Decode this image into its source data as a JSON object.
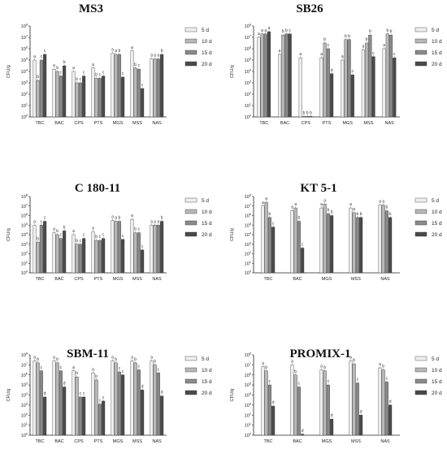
{
  "figure_title": "",
  "chart_data": [
    {
      "type": "bar",
      "title": "MS3",
      "ylabel": "CFU/g",
      "y_scale": "log10",
      "ylim_exponent": [
        0,
        8
      ],
      "tick_base": "10",
      "categories": [
        "TBC",
        "BAC",
        "CPS",
        "PTS",
        "MGS",
        "MSS",
        "NAS"
      ],
      "series": [
        {
          "name": "5 d",
          "values": [
            5.0,
            4.2,
            4.0,
            4.3,
            5.6,
            5.8,
            5.1
          ],
          "letters": [
            "a",
            "a",
            "a",
            "a",
            "a",
            "a",
            "a"
          ]
        },
        {
          "name": "10 d",
          "values": [
            3.2,
            4.0,
            3.0,
            3.4,
            5.5,
            4.3,
            5.1
          ],
          "letters": [
            "b",
            "b",
            "b",
            "b",
            "a",
            "b",
            "a"
          ]
        },
        {
          "name": "15 d",
          "values": [
            5.0,
            3.6,
            3.0,
            3.4,
            5.5,
            4.2,
            5.1
          ],
          "letters": [
            "c",
            "c",
            "c",
            "c",
            "b",
            "c",
            "a"
          ]
        },
        {
          "name": "20 d",
          "values": [
            5.5,
            4.5,
            3.6,
            3.6,
            3.5,
            2.5,
            5.5
          ],
          "letters": [
            "c",
            "b",
            "c",
            "c",
            "c",
            "c",
            "b"
          ]
        }
      ]
    },
    {
      "type": "bar",
      "title": "SB26",
      "ylabel": "CFU/g",
      "y_scale": "log10",
      "ylim_exponent": [
        0,
        8
      ],
      "tick_base": "10",
      "categories": [
        "TBC",
        "BAC",
        "CPS",
        "PTS",
        "MGS",
        "MSS",
        "NAS"
      ],
      "series": [
        {
          "name": "5 d",
          "values": [
            7.0,
            5.5,
            5.2,
            5.2,
            5.0,
            5.9,
            6.0
          ],
          "letters": [
            "a",
            "a",
            "a",
            "a",
            "a",
            "a",
            "a"
          ]
        },
        {
          "name": "10 d",
          "values": [
            7.3,
            7.2,
            0.05,
            6.5,
            6.8,
            6.5,
            7.3
          ],
          "letters": [
            "a",
            "b",
            "b",
            "b",
            "b",
            "b",
            "b"
          ]
        },
        {
          "name": "15 d",
          "values": [
            7.3,
            7.3,
            0.05,
            6.0,
            6.8,
            7.2,
            7.2
          ],
          "letters": [
            "a",
            "b",
            "b",
            "c",
            "b",
            "b",
            "b"
          ]
        },
        {
          "name": "20 d",
          "values": [
            7.5,
            7.3,
            0.05,
            3.8,
            3.7,
            5.3,
            5.2
          ],
          "letters": [
            "a",
            "c",
            "b",
            "d",
            "c",
            "c",
            "c"
          ]
        }
      ]
    },
    {
      "type": "bar",
      "title": "C 180-11",
      "ylabel": "CFU/g",
      "y_scale": "log10",
      "ylim_exponent": [
        0,
        8
      ],
      "tick_base": "10",
      "categories": [
        "TBC",
        "BAC",
        "CPS",
        "PTS",
        "MGS",
        "MSS",
        "NAS"
      ],
      "series": [
        {
          "name": "5 d",
          "values": [
            5.0,
            4.2,
            4.0,
            4.3,
            5.5,
            5.6,
            5.0
          ],
          "letters": [
            "a",
            "a",
            "a",
            "a",
            "a",
            "a",
            "a"
          ]
        },
        {
          "name": "10 d",
          "values": [
            3.2,
            4.0,
            3.0,
            3.4,
            5.4,
            4.2,
            5.0
          ],
          "letters": [
            "b",
            "b",
            "b",
            "b",
            "a",
            "b",
            "a"
          ]
        },
        {
          "name": "15 d",
          "values": [
            5.0,
            3.6,
            3.0,
            3.4,
            5.4,
            4.2,
            5.0
          ],
          "letters": [
            "c",
            "c",
            "c",
            "c",
            "b",
            "c",
            "a"
          ]
        },
        {
          "name": "20 d",
          "values": [
            5.4,
            4.4,
            3.6,
            3.6,
            3.5,
            2.4,
            5.4
          ],
          "letters": [
            "c",
            "b",
            "c",
            "c",
            "c",
            "c",
            "b"
          ]
        }
      ]
    },
    {
      "type": "bar",
      "title": "KT 5-1",
      "ylabel": "CFU/g",
      "y_scale": "log10",
      "ylim_exponent": [
        0,
        8
      ],
      "tick_base": "10",
      "categories": [
        "TBC",
        "BAC",
        "MGS",
        "MSS",
        "NAS"
      ],
      "series": [
        {
          "name": "5 d",
          "values": [
            7.0,
            6.5,
            6.8,
            6.8,
            7.1
          ],
          "letters": [
            "a",
            "a",
            "a",
            "a",
            "a"
          ]
        },
        {
          "name": "10 d",
          "values": [
            7.4,
            6.8,
            7.2,
            6.3,
            7.1
          ],
          "letters": [
            "a",
            "a",
            "a",
            "a",
            "a"
          ]
        },
        {
          "name": "15 d",
          "values": [
            5.8,
            5.4,
            6.2,
            5.8,
            6.5
          ],
          "letters": [
            "b",
            "b",
            "b",
            "b",
            "b"
          ]
        },
        {
          "name": "20 d",
          "values": [
            4.8,
            2.6,
            6.0,
            5.8,
            5.8
          ],
          "letters": [
            "c",
            "c",
            "b",
            "b",
            "b"
          ]
        }
      ]
    },
    {
      "type": "bar",
      "title": "SBM-11",
      "ylabel": "CFU/g",
      "y_scale": "log10",
      "ylim_exponent": [
        0,
        8
      ],
      "tick_base": "10",
      "categories": [
        "TBC",
        "BAC",
        "CPS",
        "PTS",
        "MGS",
        "MSS",
        "NAS"
      ],
      "series": [
        {
          "name": "5 d",
          "values": [
            7.4,
            7.4,
            6.4,
            6.2,
            7.4,
            7.4,
            7.4
          ],
          "letters": [
            "a",
            "a",
            "a",
            "a",
            "a",
            "a",
            "a"
          ]
        },
        {
          "name": "10 d",
          "values": [
            7.2,
            7.2,
            5.8,
            5.5,
            7.2,
            7.2,
            7.0
          ],
          "letters": [
            "b",
            "b",
            "b",
            "b",
            "b",
            "b",
            "b"
          ]
        },
        {
          "name": "15 d",
          "values": [
            6.4,
            6.4,
            3.8,
            3.1,
            6.3,
            6.5,
            6.2
          ],
          "letters": [
            "c",
            "c",
            "c",
            "c",
            "c",
            "c",
            "c"
          ]
        },
        {
          "name": "20 d",
          "values": [
            3.8,
            4.8,
            3.8,
            3.4,
            6.0,
            4.5,
            3.9
          ],
          "letters": [
            "d",
            "d",
            "c",
            "c",
            "c",
            "d",
            "d"
          ]
        }
      ]
    },
    {
      "type": "bar",
      "title": "PROMIX-1",
      "ylabel": "CFU/g",
      "y_scale": "log10",
      "ylim_exponent": [
        0,
        8
      ],
      "tick_base": "10",
      "categories": [
        "TBC",
        "BAC",
        "MGS",
        "MSS",
        "NAS"
      ],
      "series": [
        {
          "name": "5 d",
          "values": [
            6.8,
            7.0,
            6.5,
            7.4,
            6.7
          ],
          "letters": [
            "a",
            "a",
            "a",
            "a",
            "a"
          ]
        },
        {
          "name": "10 d",
          "values": [
            6.4,
            6.0,
            6.4,
            7.1,
            6.5
          ],
          "letters": [
            "b",
            "b",
            "b",
            "b",
            "b"
          ]
        },
        {
          "name": "15 d",
          "values": [
            5.0,
            4.8,
            5.0,
            5.2,
            5.3
          ],
          "letters": [
            "c",
            "c",
            "c",
            "c",
            "c"
          ]
        },
        {
          "name": "20 d",
          "values": [
            2.9,
            0.1,
            1.6,
            2.0,
            3.0
          ],
          "letters": [
            "d",
            "d",
            "d",
            "d",
            "d"
          ]
        }
      ]
    }
  ],
  "colors": {
    "series": [
      "#eeeeee",
      "#b8b8b8",
      "#8a8a8a",
      "#4a4a4a"
    ],
    "bar_stroke": "#333333",
    "axis": "#222222"
  }
}
